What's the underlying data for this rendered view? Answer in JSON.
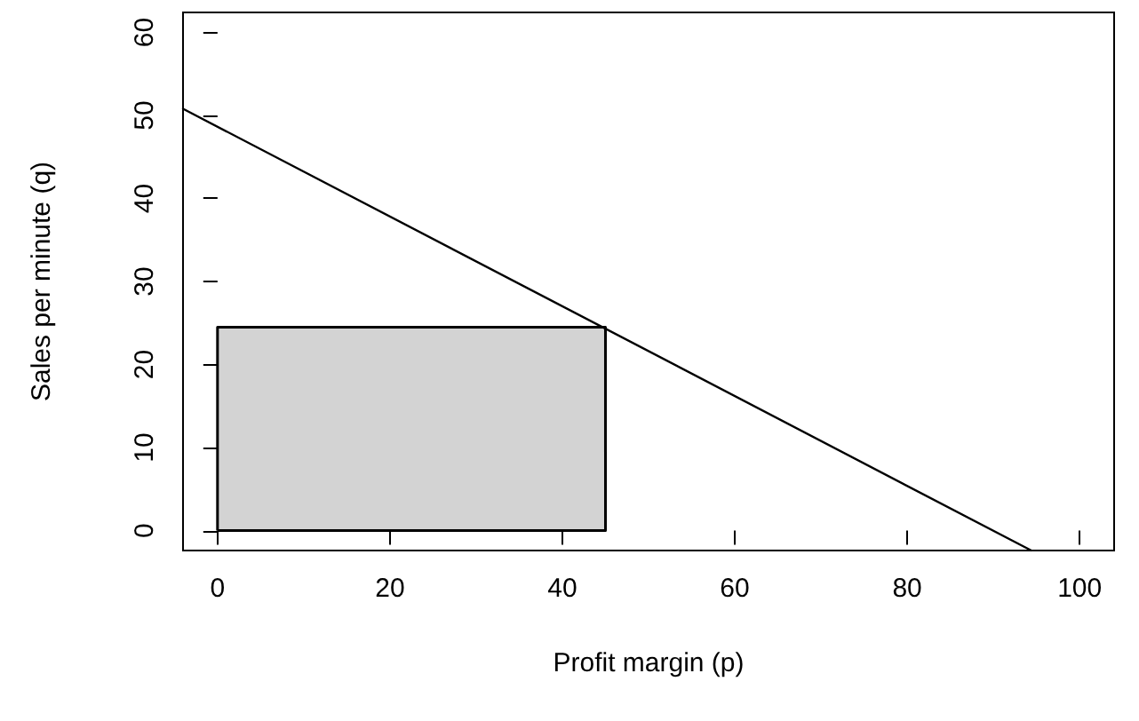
{
  "chart_data": {
    "type": "line",
    "xlabel": "Profit margin (p)",
    "ylabel": "Sales per minute (q)",
    "xlim": [
      -4,
      104
    ],
    "ylim": [
      -2.4,
      62.4
    ],
    "xticks": [
      0,
      20,
      40,
      60,
      80,
      100
    ],
    "yticks": [
      0,
      10,
      20,
      30,
      40,
      50,
      60
    ],
    "grid": false,
    "marker": "none",
    "line_style": "solid",
    "series": [
      {
        "type": "area",
        "color": "#d3d3d3",
        "x": [
          0,
          0,
          45,
          45,
          0
        ],
        "values": [
          0,
          24.5,
          24.5,
          0,
          0
        ]
      },
      {
        "color": "#000000",
        "x": [
          -4,
          94.4
        ],
        "values": [
          50.8,
          -2.4
        ]
      }
    ]
  }
}
